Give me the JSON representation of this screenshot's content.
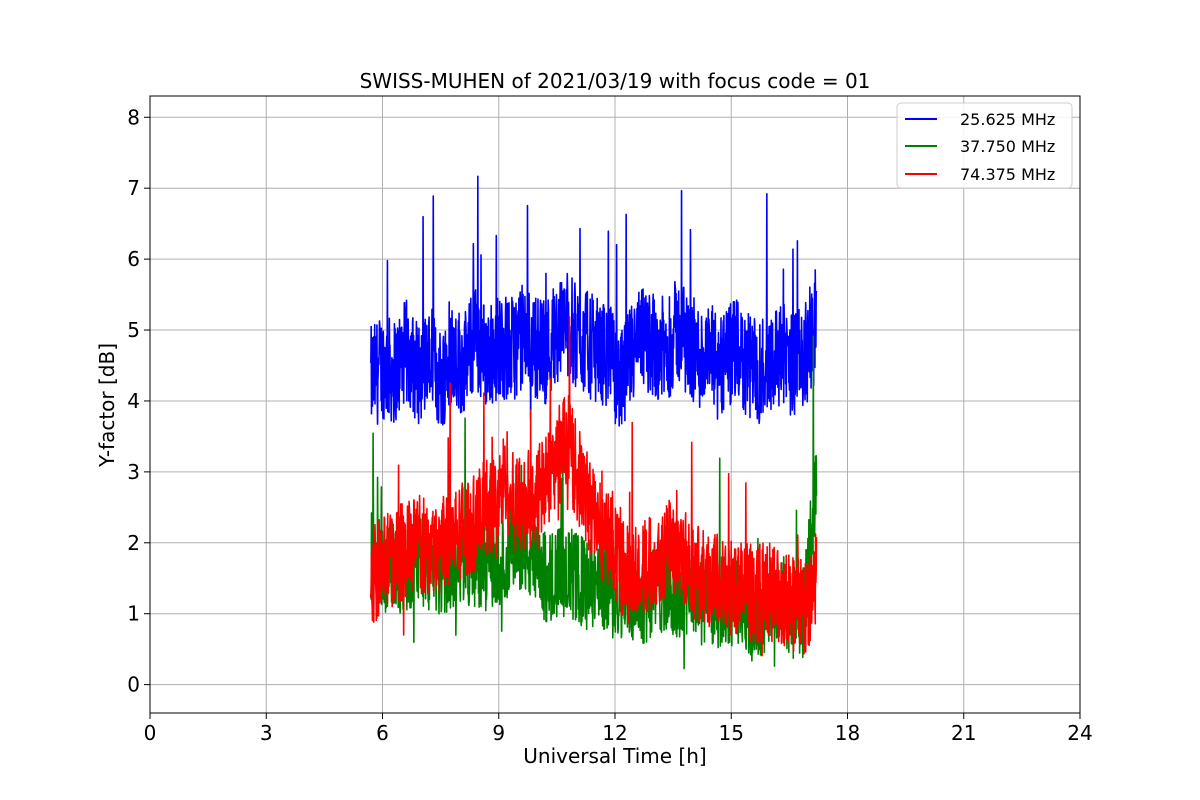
{
  "chart_data": {
    "type": "line",
    "title": "SWISS-MUHEN of 2021/03/19 with focus code = 01",
    "xlabel": "Universal Time [h]",
    "ylabel": "Y-factor [dB]",
    "xlim": [
      0,
      24
    ],
    "ylim": [
      -0.4,
      8.3
    ],
    "xticks": [
      0,
      3,
      6,
      9,
      12,
      15,
      18,
      21,
      24
    ],
    "yticks": [
      0,
      1,
      2,
      3,
      4,
      5,
      6,
      7,
      8
    ],
    "grid": true,
    "legend_position": "top-right",
    "series": [
      {
        "name": "25.625 MHz",
        "color": "#0000ff",
        "x": [
          5.7,
          6.0,
          6.3,
          6.6,
          6.9,
          7.2,
          7.5,
          7.8,
          8.1,
          8.4,
          8.7,
          9.0,
          9.3,
          9.6,
          9.9,
          10.2,
          10.5,
          10.75,
          11.0,
          11.3,
          11.6,
          11.9,
          12.15,
          12.4,
          12.7,
          13.0,
          13.3,
          13.6,
          13.9,
          14.2,
          14.5,
          14.8,
          15.1,
          15.4,
          15.7,
          16.0,
          16.3,
          16.6,
          16.9,
          17.2
        ],
        "y": [
          4.3,
          4.5,
          4.4,
          4.7,
          4.4,
          4.6,
          4.3,
          4.7,
          4.5,
          4.9,
          4.6,
          4.8,
          4.7,
          4.9,
          4.8,
          4.7,
          5.0,
          5.1,
          4.9,
          4.8,
          4.7,
          4.6,
          4.2,
          4.6,
          4.9,
          4.8,
          4.7,
          5.0,
          4.8,
          4.6,
          4.6,
          4.5,
          4.7,
          4.5,
          4.4,
          4.6,
          4.7,
          4.5,
          4.6,
          5.2
        ]
      },
      {
        "name": "37.750 MHz",
        "color": "#008000",
        "x": [
          5.7,
          6.0,
          6.3,
          6.6,
          6.9,
          7.2,
          7.5,
          7.8,
          8.1,
          8.4,
          8.7,
          9.0,
          9.3,
          9.6,
          9.9,
          10.2,
          10.5,
          10.75,
          11.0,
          11.3,
          11.6,
          11.9,
          12.15,
          12.4,
          12.7,
          13.0,
          13.3,
          13.6,
          13.9,
          14.2,
          14.5,
          14.8,
          15.1,
          15.4,
          15.7,
          16.0,
          16.3,
          16.6,
          16.9,
          17.2
        ],
        "y": [
          1.8,
          1.6,
          1.7,
          1.6,
          1.8,
          1.7,
          1.6,
          1.7,
          1.8,
          1.7,
          1.8,
          1.7,
          1.9,
          2.0,
          1.7,
          1.5,
          1.6,
          1.6,
          1.5,
          1.4,
          1.4,
          1.4,
          1.3,
          1.3,
          1.2,
          1.3,
          1.4,
          1.2,
          1.3,
          1.2,
          1.2,
          1.1,
          1.2,
          1.1,
          1.0,
          1.1,
          1.2,
          1.0,
          1.1,
          3.0
        ]
      },
      {
        "name": "74.375 MHz",
        "color": "#ff0000",
        "x": [
          5.7,
          6.0,
          6.3,
          6.6,
          6.9,
          7.2,
          7.5,
          7.8,
          8.1,
          8.4,
          8.7,
          9.0,
          9.2,
          9.3,
          9.6,
          9.9,
          10.2,
          10.5,
          10.75,
          11.0,
          11.3,
          11.6,
          11.9,
          12.15,
          12.4,
          12.7,
          13.0,
          13.3,
          13.6,
          13.9,
          14.2,
          14.5,
          14.8,
          15.1,
          15.4,
          15.7,
          16.0,
          16.3,
          16.6,
          16.9,
          17.2
        ],
        "y": [
          1.5,
          1.7,
          1.8,
          1.9,
          2.0,
          1.9,
          2.0,
          2.1,
          2.2,
          2.3,
          2.5,
          2.6,
          3.0,
          2.6,
          2.5,
          2.7,
          2.8,
          3.2,
          3.5,
          3.0,
          2.6,
          2.2,
          2.0,
          1.6,
          1.7,
          1.6,
          1.8,
          1.9,
          2.0,
          1.7,
          1.5,
          1.5,
          1.4,
          1.4,
          1.3,
          1.3,
          1.3,
          1.2,
          1.1,
          1.1,
          1.5
        ]
      }
    ]
  }
}
